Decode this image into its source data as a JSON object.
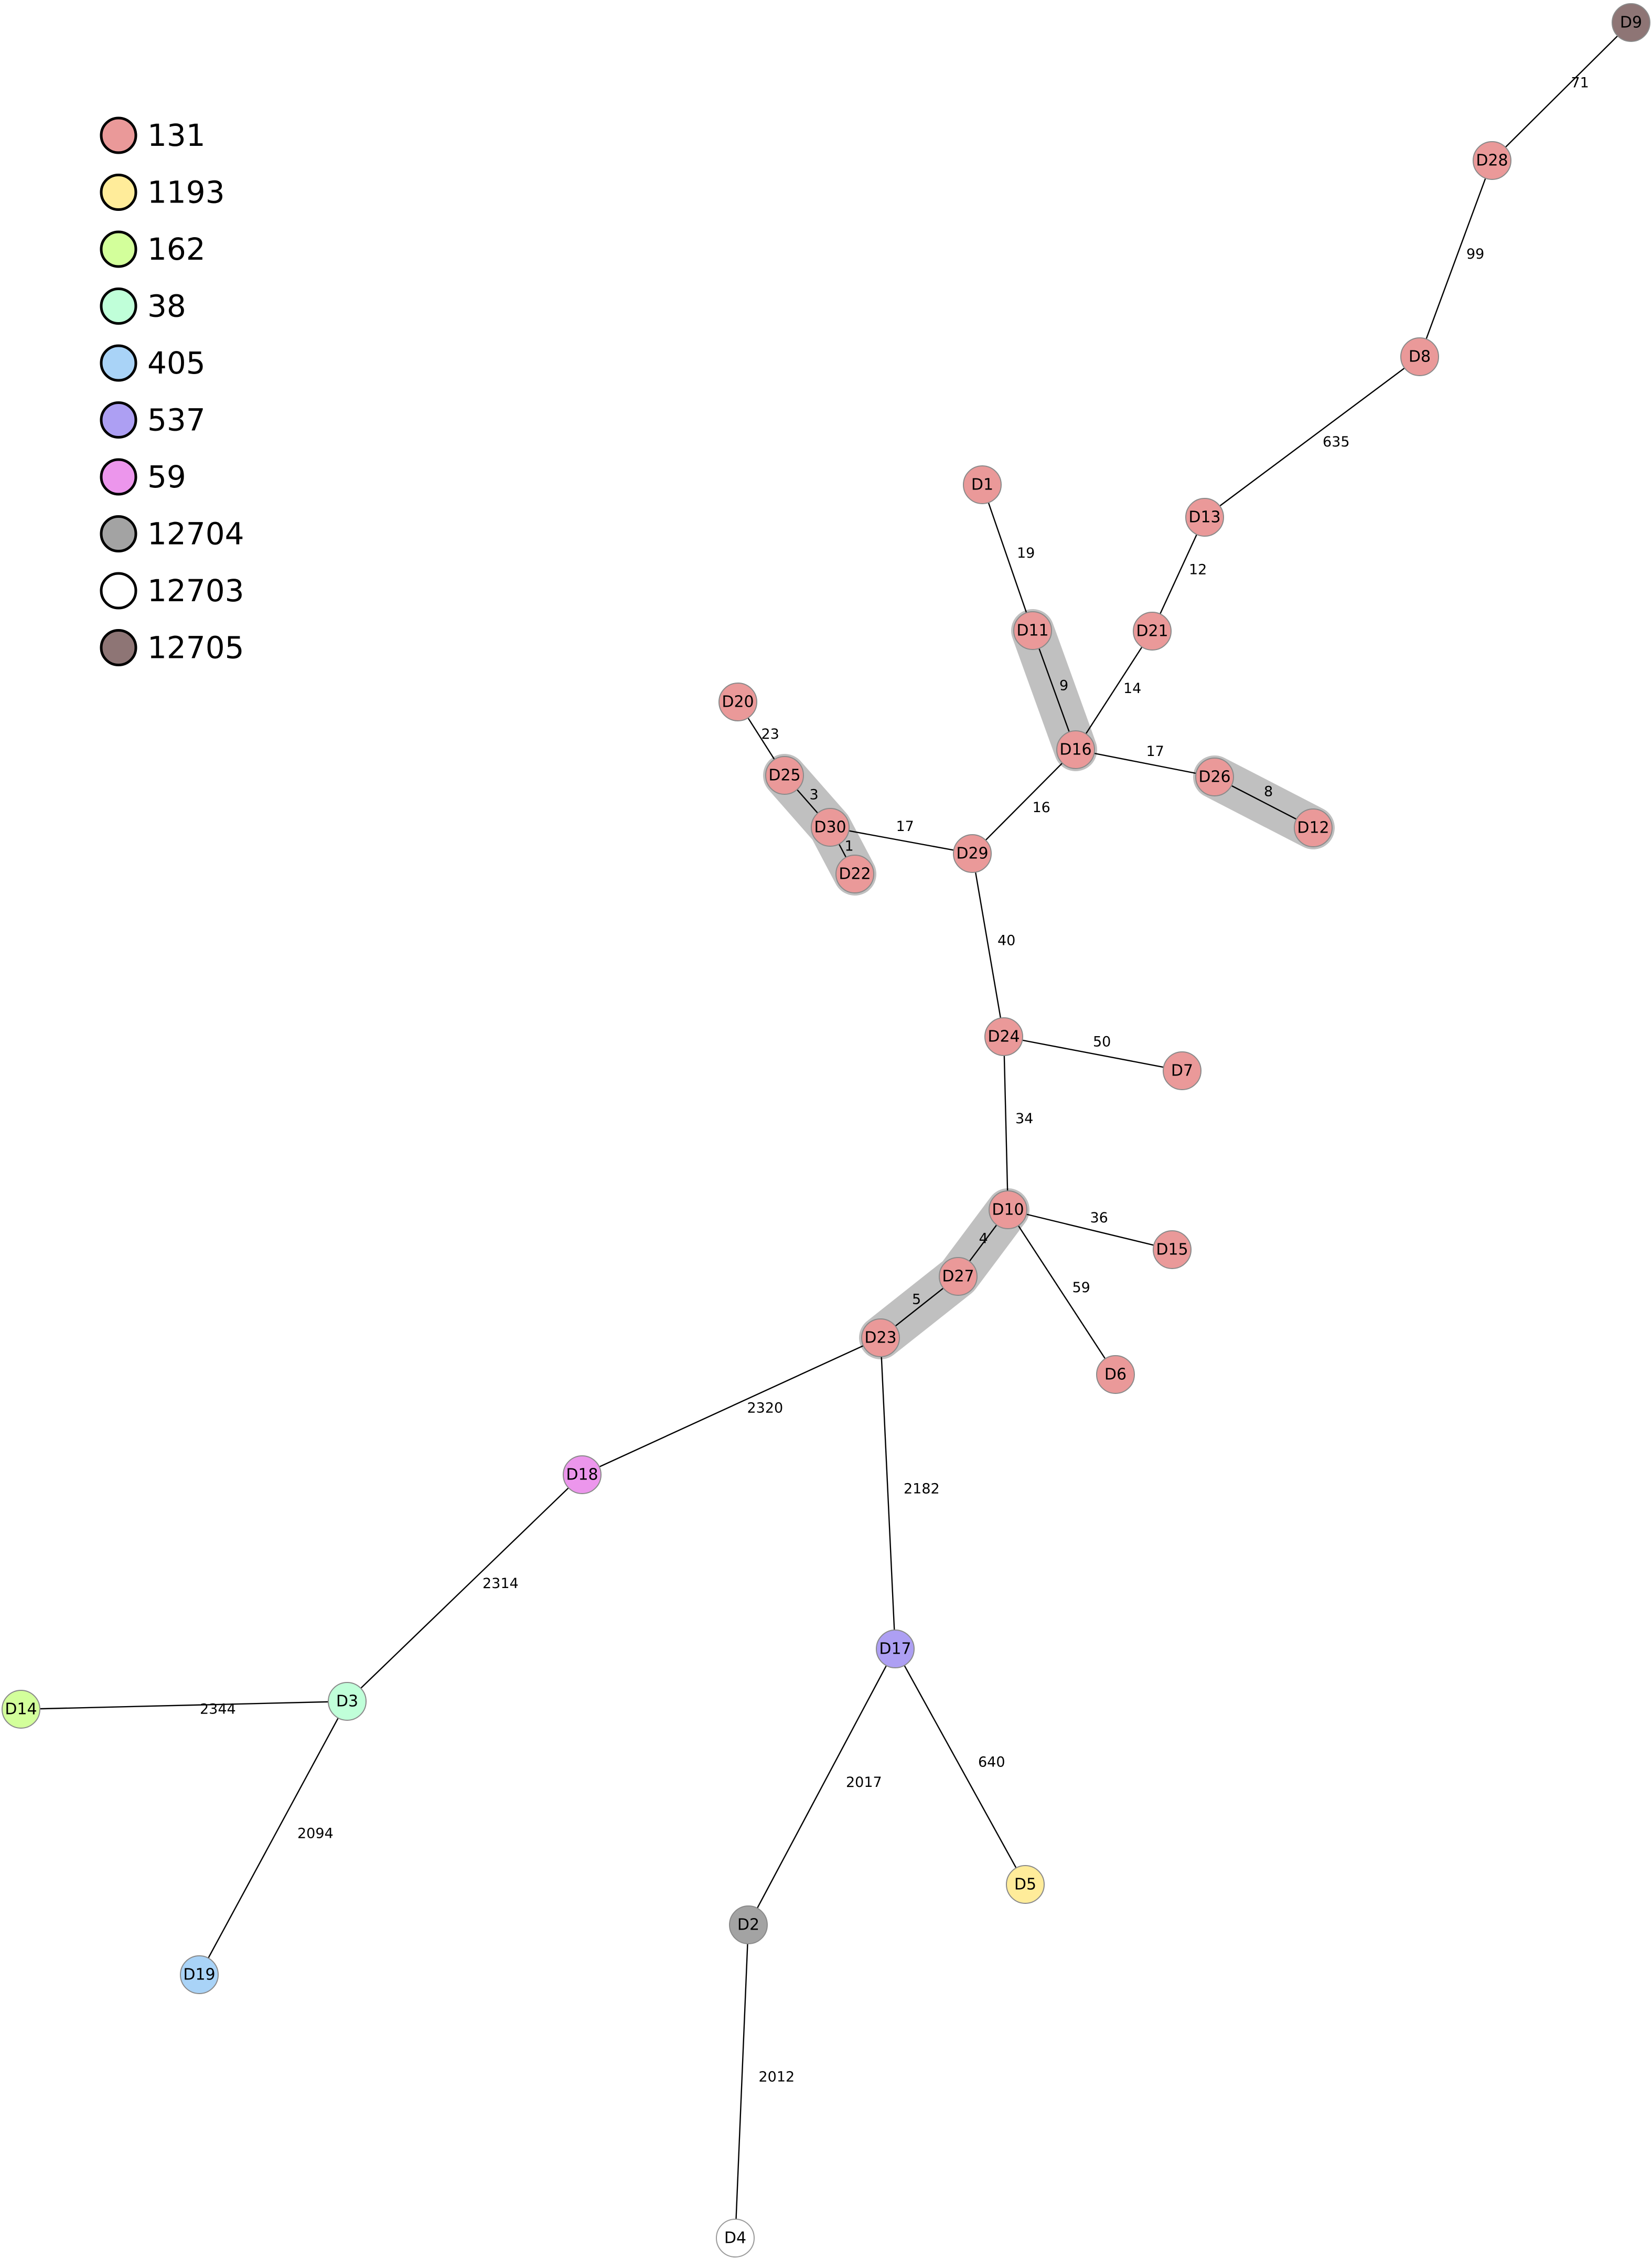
{
  "legend": [
    {
      "label": "131",
      "color": "#ea9999"
    },
    {
      "label": "1193",
      "color": "#ffec9a"
    },
    {
      "label": "162",
      "color": "#d3ff9b"
    },
    {
      "label": "38",
      "color": "#c0ffd9"
    },
    {
      "label": "405",
      "color": "#a9d3f7"
    },
    {
      "label": "537",
      "color": "#ad9ff3"
    },
    {
      "label": "59",
      "color": "#ec96ec"
    },
    {
      "label": "12704",
      "color": "#a3a3a3"
    },
    {
      "label": "12703",
      "color": "#ffffff"
    },
    {
      "label": "12705",
      "color": "#8e7575"
    }
  ],
  "nodes": [
    {
      "id": "D9",
      "group": "12705"
    },
    {
      "id": "D28",
      "group": "131"
    },
    {
      "id": "D8",
      "group": "131"
    },
    {
      "id": "D13",
      "group": "131"
    },
    {
      "id": "D21",
      "group": "131"
    },
    {
      "id": "D1",
      "group": "131"
    },
    {
      "id": "D11",
      "group": "131"
    },
    {
      "id": "D16",
      "group": "131"
    },
    {
      "id": "D26",
      "group": "131"
    },
    {
      "id": "D12",
      "group": "131"
    },
    {
      "id": "D20",
      "group": "131"
    },
    {
      "id": "D25",
      "group": "131"
    },
    {
      "id": "D30",
      "group": "131"
    },
    {
      "id": "D22",
      "group": "131"
    },
    {
      "id": "D29",
      "group": "131"
    },
    {
      "id": "D24",
      "group": "131"
    },
    {
      "id": "D7",
      "group": "131"
    },
    {
      "id": "D10",
      "group": "131"
    },
    {
      "id": "D15",
      "group": "131"
    },
    {
      "id": "D27",
      "group": "131"
    },
    {
      "id": "D6",
      "group": "131"
    },
    {
      "id": "D23",
      "group": "131"
    },
    {
      "id": "D18",
      "group": "59"
    },
    {
      "id": "D17",
      "group": "537"
    },
    {
      "id": "D3",
      "group": "38"
    },
    {
      "id": "D14",
      "group": "162"
    },
    {
      "id": "D19",
      "group": "405"
    },
    {
      "id": "D2",
      "group": "12704"
    },
    {
      "id": "D5",
      "group": "1193"
    },
    {
      "id": "D4",
      "group": "12703"
    }
  ],
  "edges": [
    {
      "source": "D9",
      "target": "D28",
      "weight": "71"
    },
    {
      "source": "D28",
      "target": "D8",
      "weight": "99"
    },
    {
      "source": "D8",
      "target": "D13",
      "weight": "635"
    },
    {
      "source": "D13",
      "target": "D21",
      "weight": "12"
    },
    {
      "source": "D21",
      "target": "D16",
      "weight": "14"
    },
    {
      "source": "D1",
      "target": "D11",
      "weight": "19"
    },
    {
      "source": "D11",
      "target": "D16",
      "weight": "9"
    },
    {
      "source": "D16",
      "target": "D26",
      "weight": "17"
    },
    {
      "source": "D26",
      "target": "D12",
      "weight": "8"
    },
    {
      "source": "D16",
      "target": "D29",
      "weight": "16"
    },
    {
      "source": "D20",
      "target": "D25",
      "weight": "23"
    },
    {
      "source": "D25",
      "target": "D30",
      "weight": "3"
    },
    {
      "source": "D30",
      "target": "D22",
      "weight": "1"
    },
    {
      "source": "D30",
      "target": "D29",
      "weight": "17"
    },
    {
      "source": "D29",
      "target": "D24",
      "weight": "40"
    },
    {
      "source": "D24",
      "target": "D7",
      "weight": "50"
    },
    {
      "source": "D24",
      "target": "D10",
      "weight": "34"
    },
    {
      "source": "D10",
      "target": "D15",
      "weight": "36"
    },
    {
      "source": "D10",
      "target": "D6",
      "weight": "59"
    },
    {
      "source": "D10",
      "target": "D27",
      "weight": "4"
    },
    {
      "source": "D27",
      "target": "D23",
      "weight": "5"
    },
    {
      "source": "D23",
      "target": "D18",
      "weight": "2320"
    },
    {
      "source": "D23",
      "target": "D17",
      "weight": "2182"
    },
    {
      "source": "D18",
      "target": "D3",
      "weight": "2314"
    },
    {
      "source": "D3",
      "target": "D14",
      "weight": "2344"
    },
    {
      "source": "D3",
      "target": "D19",
      "weight": "2094"
    },
    {
      "source": "D17",
      "target": "D2",
      "weight": "2017"
    },
    {
      "source": "D17",
      "target": "D5",
      "weight": "640"
    },
    {
      "source": "D2",
      "target": "D4",
      "weight": "2012"
    }
  ],
  "clusters": [
    [
      "D11",
      "D16"
    ],
    [
      "D26",
      "D12"
    ],
    [
      "D25",
      "D30",
      "D22"
    ],
    [
      "D10",
      "D27",
      "D23"
    ]
  ]
}
